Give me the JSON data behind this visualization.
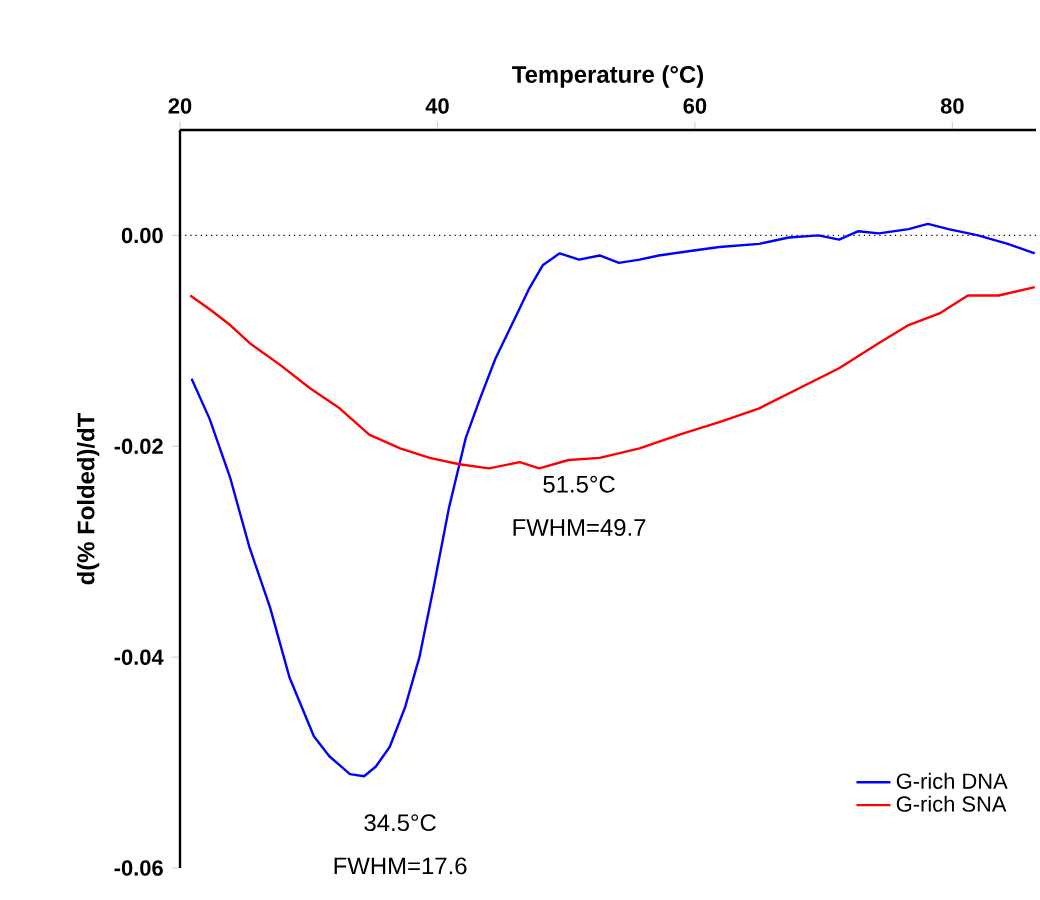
{
  "chart_data": {
    "type": "line",
    "xlabel": "Temperature (°C)",
    "ylabel": "d(% Folded)/dT",
    "xlim": [
      20,
      86.5
    ],
    "xticks": [
      20,
      40,
      60,
      80
    ],
    "ylim": [
      -0.06,
      0.01
    ],
    "yticks": [
      {
        "value": 0,
        "label": "0.00"
      },
      {
        "value": -0.02,
        "label": "-0.02"
      },
      {
        "value": -0.04,
        "label": "-0.04"
      },
      {
        "value": -0.06,
        "label": "-0.06"
      }
    ],
    "legend": "bottom right",
    "marker": "none",
    "line_style": "solid",
    "ref_lines": [
      {
        "axis": "y",
        "value": 0,
        "color": "#000000",
        "line_style": "dotted"
      }
    ],
    "annotations": [
      "51.5°C",
      "FWHM=49.7",
      "34.5°C",
      "FWHM=17.6"
    ],
    "series": [
      {
        "name": "G-rich DNA",
        "color": "#0000ff",
        "x": [
          20.9,
          22.3,
          23.9,
          25.4,
          27.0,
          28.5,
          30.4,
          31.6,
          33.2,
          34.3,
          35.2,
          36.3,
          37.5,
          38.6,
          39.7,
          40.9,
          42.2,
          43.3,
          44.5,
          46.0,
          47.1,
          48.2,
          49.5,
          51.0,
          52.6,
          54.1,
          55.7,
          57.2,
          59.5,
          61.9,
          65.0,
          67.3,
          69.6,
          71.2,
          72.7,
          74.3,
          76.6,
          78.1,
          79.7,
          82.0,
          84.3,
          86.4
        ],
        "values": [
          -0.0136,
          -0.0174,
          -0.023,
          -0.0296,
          -0.0353,
          -0.0419,
          -0.0475,
          -0.0494,
          -0.0511,
          -0.0513,
          -0.0504,
          -0.0485,
          -0.0447,
          -0.04,
          -0.0334,
          -0.0258,
          -0.0192,
          -0.0155,
          -0.0117,
          -0.0079,
          -0.0051,
          -0.0028,
          -0.0017,
          -0.0023,
          -0.0019,
          -0.0026,
          -0.0023,
          -0.0019,
          -0.0015,
          -0.0011,
          -0.0008,
          -0.0002,
          0.0,
          -0.0004,
          0.0004,
          0.0002,
          0.0006,
          0.0011,
          0.0006,
          0.0,
          -0.0008,
          -0.0017
        ]
      },
      {
        "name": "G-rich SNA",
        "color": "#ff0000",
        "x": [
          20.8,
          22.3,
          23.9,
          25.4,
          27.8,
          30.1,
          32.4,
          34.7,
          37.1,
          39.4,
          41.7,
          44.0,
          46.4,
          47.9,
          50.2,
          52.6,
          55.7,
          58.8,
          61.9,
          65.0,
          68.1,
          71.2,
          74.3,
          76.6,
          79.0,
          81.2,
          83.6,
          86.4
        ],
        "values": [
          -0.0057,
          -0.007,
          -0.0085,
          -0.0102,
          -0.0123,
          -0.0145,
          -0.0164,
          -0.0189,
          -0.0202,
          -0.0211,
          -0.0217,
          -0.0221,
          -0.0215,
          -0.0221,
          -0.0213,
          -0.0211,
          -0.0202,
          -0.0189,
          -0.0177,
          -0.0164,
          -0.0145,
          -0.0126,
          -0.0102,
          -0.0085,
          -0.0074,
          -0.0057,
          -0.0057,
          -0.0049
        ]
      }
    ]
  }
}
